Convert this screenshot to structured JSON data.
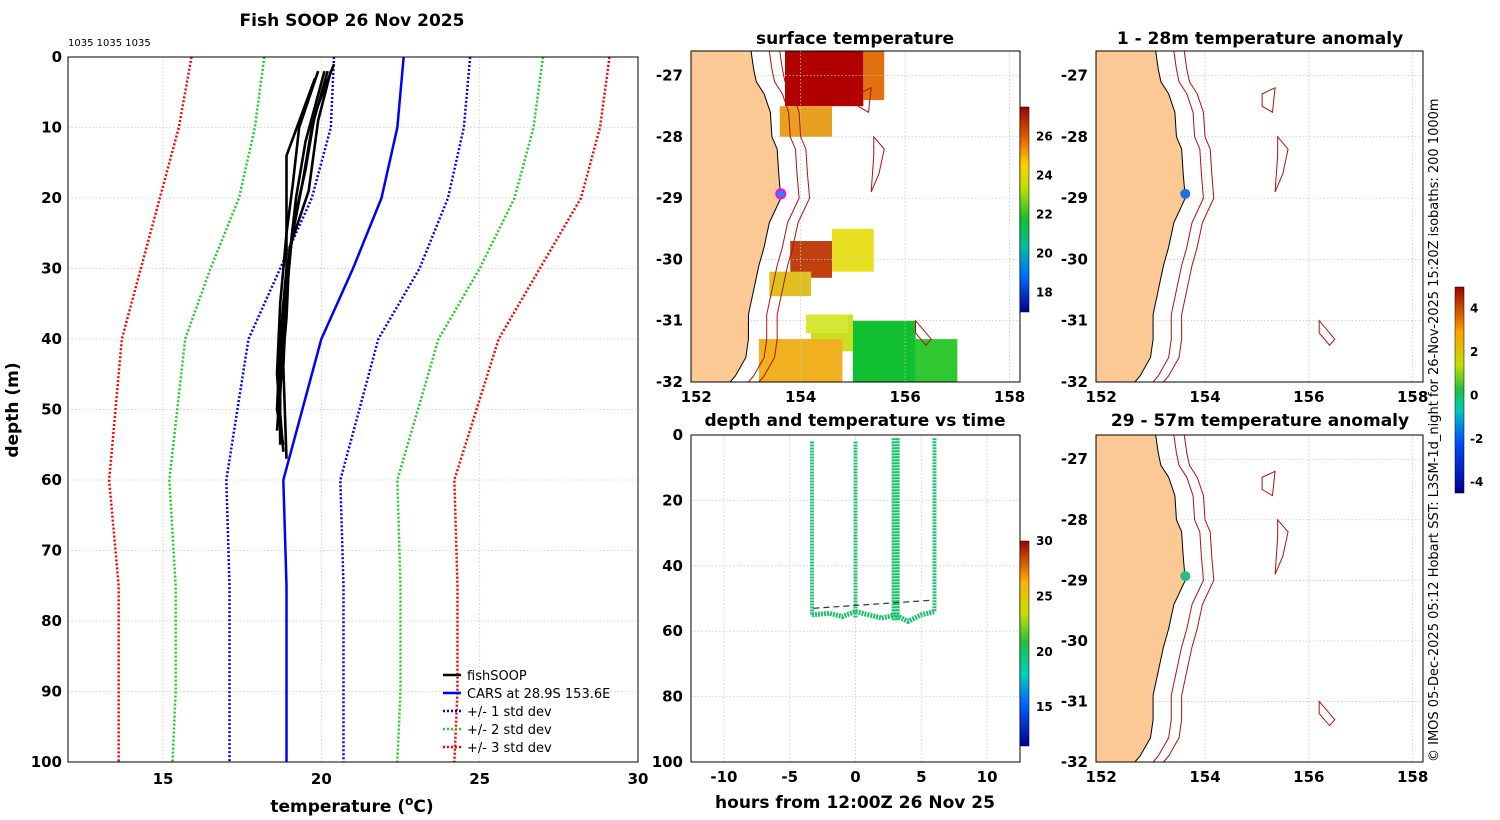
{
  "main_title": "Fish SOOP 26 Nov 2025",
  "ids_note": "1035 1035 1035",
  "side_credit": "© IMOS 05-Dec-2025 05:12 Hobart SST: L3SM-1d_night for 26-Nov-2025 15:20Z isobaths: 200  1000m",
  "colors": {
    "fishsoop": "#000000",
    "cars": "#0000ff",
    "std1": "#0000ff",
    "std2": "#22cc22",
    "std3": "#ff0000",
    "land": "#fcc894",
    "isobath": "#b01010",
    "marker": "#2090e0",
    "marker_sst": "#ff00ff"
  },
  "chart_data": [
    {
      "id": "profile",
      "type": "line",
      "title": "Fish SOOP 26 Nov 2025",
      "xlabel": "temperature (°C)",
      "ylabel": "depth (m)",
      "xlim": [
        12,
        30
      ],
      "ylim": [
        100,
        0
      ],
      "x_ticks": [
        15,
        20,
        25,
        30
      ],
      "y_ticks": [
        0,
        10,
        20,
        30,
        40,
        50,
        60,
        70,
        80,
        90,
        100
      ],
      "legend": [
        "fishSOOP",
        "CARS at 28.9S 153.6E",
        "+/- 1 std dev",
        "+/- 2 std dev",
        "+/- 3 std dev"
      ],
      "legend_position": "bottom-right",
      "depths": [
        0,
        10,
        20,
        30,
        40,
        60,
        75,
        90,
        100
      ],
      "series": [
        {
          "name": "CARS",
          "style": "solid",
          "values": [
            22.6,
            22.4,
            21.9,
            21.0,
            20.0,
            18.8,
            18.9,
            18.9,
            18.9
          ]
        },
        {
          "name": "+1 std",
          "style": "dotted",
          "values": [
            24.7,
            24.5,
            24.0,
            23.1,
            21.8,
            20.6,
            20.7,
            20.7,
            20.7
          ]
        },
        {
          "name": "-1 std",
          "style": "dotted",
          "values": [
            20.4,
            20.3,
            19.7,
            18.7,
            17.7,
            17.0,
            17.1,
            17.1,
            17.1
          ]
        },
        {
          "name": "+2 std",
          "style": "dotted",
          "values": [
            27.0,
            26.7,
            26.1,
            25.0,
            23.7,
            22.4,
            22.5,
            22.5,
            22.4
          ]
        },
        {
          "name": "-2 std",
          "style": "dotted",
          "values": [
            18.2,
            17.9,
            17.4,
            16.5,
            15.7,
            15.2,
            15.4,
            15.4,
            15.3
          ]
        },
        {
          "name": "+3 std",
          "style": "dotted",
          "values": [
            29.1,
            28.8,
            28.2,
            26.9,
            25.6,
            24.2,
            24.3,
            24.3,
            24.2
          ]
        },
        {
          "name": "-3 std",
          "style": "dotted",
          "values": [
            15.9,
            15.5,
            14.9,
            14.3,
            13.7,
            13.3,
            13.6,
            13.6,
            13.6
          ]
        }
      ],
      "fishsoop_profiles": [
        {
          "depths": [
            2,
            10,
            18,
            25,
            35,
            45,
            55
          ],
          "values": [
            20.2,
            19.7,
            19.4,
            19.1,
            18.8,
            18.7,
            18.7
          ]
        },
        {
          "depths": [
            2,
            10,
            18,
            25,
            35,
            45,
            56
          ],
          "values": [
            19.9,
            19.3,
            19.1,
            18.9,
            18.7,
            18.6,
            18.8
          ]
        },
        {
          "depths": [
            2,
            12,
            20,
            28,
            38,
            48,
            54
          ],
          "values": [
            20.1,
            19.5,
            19.2,
            19.0,
            18.8,
            18.7,
            18.7
          ]
        },
        {
          "depths": [
            1,
            8,
            16,
            24,
            34,
            44,
            57
          ],
          "values": [
            20.4,
            19.8,
            19.5,
            19.1,
            18.9,
            18.8,
            18.9
          ]
        },
        {
          "depths": [
            3,
            14,
            22,
            30,
            40,
            50,
            55
          ],
          "values": [
            19.8,
            18.9,
            18.9,
            18.9,
            18.7,
            18.6,
            18.8
          ]
        },
        {
          "depths": [
            2,
            9,
            19,
            27,
            37,
            47,
            53
          ],
          "values": [
            20.3,
            19.9,
            19.6,
            19.0,
            18.9,
            18.7,
            18.6
          ]
        }
      ]
    },
    {
      "id": "surface_temperature",
      "type": "heatmap",
      "title": "surface temperature",
      "x_ticks": [
        152,
        154,
        156,
        158
      ],
      "y_ticks": [
        -27,
        -28,
        -29,
        -30,
        -31,
        -32
      ],
      "xlim": [
        151.9,
        158.2
      ],
      "ylim": [
        -32,
        -26.6
      ],
      "colorbar_ticks": [
        26,
        24,
        22,
        20,
        18
      ],
      "colorbar_range": [
        17,
        27.5
      ]
    },
    {
      "id": "anomaly_upper",
      "type": "heatmap",
      "title": "1 - 28m temperature anomaly",
      "x_ticks": [
        152,
        154,
        156,
        158
      ],
      "y_ticks": [
        -27,
        -28,
        -29,
        -30,
        -31,
        -32
      ],
      "xlim": [
        151.9,
        158.2
      ],
      "ylim": [
        -32,
        -26.6
      ]
    },
    {
      "id": "anomaly_lower",
      "type": "heatmap",
      "title": "29 - 57m temperature anomaly",
      "x_ticks": [
        152,
        154,
        156,
        158
      ],
      "y_ticks": [
        -27,
        -28,
        -29,
        -30,
        -31,
        -32
      ],
      "xlim": [
        151.9,
        158.2
      ],
      "ylim": [
        -32,
        -26.6
      ]
    },
    {
      "id": "anomaly_colorbar",
      "type": "heatmap",
      "colorbar_ticks": [
        4,
        2,
        0,
        -2,
        -4
      ],
      "colorbar_range": [
        -4.5,
        5
      ]
    },
    {
      "id": "depth_time",
      "type": "scatter",
      "title": "depth and temperature vs time",
      "xlabel": "hours from 12:00Z 26 Nov 25",
      "xlim": [
        -12.5,
        12.5
      ],
      "ylim": [
        100,
        0
      ],
      "x_ticks": [
        -10,
        -5,
        0,
        5,
        10
      ],
      "y_ticks": [
        0,
        20,
        40,
        60,
        80,
        100
      ],
      "colorbar_ticks": [
        30,
        25,
        20,
        15
      ],
      "colorbar_range": [
        11.5,
        30
      ],
      "casts": [
        {
          "x_start": -3.3,
          "x_end": 0.0,
          "top": 2,
          "bottom": 55
        },
        {
          "x_start": 0.0,
          "x_end": 2.9,
          "top": 2,
          "bottom": 56
        },
        {
          "x_start": 2.9,
          "x_end": 3.2,
          "top": 1,
          "bottom": 57
        },
        {
          "x_start": 3.2,
          "x_end": 6.0,
          "top": 1,
          "bottom": 54
        }
      ],
      "bottom_trace": {
        "x": [
          -3.3,
          -2.0,
          -1.0,
          0.0,
          1.0,
          2.0,
          3.0,
          4.0,
          5.0,
          6.0
        ],
        "depth": [
          55,
          54.5,
          55.5,
          54,
          55,
          56,
          55,
          57,
          55,
          54
        ]
      },
      "dashed_line": {
        "x": [
          -3.2,
          5.9
        ],
        "depth": [
          53,
          50.5
        ]
      }
    }
  ]
}
